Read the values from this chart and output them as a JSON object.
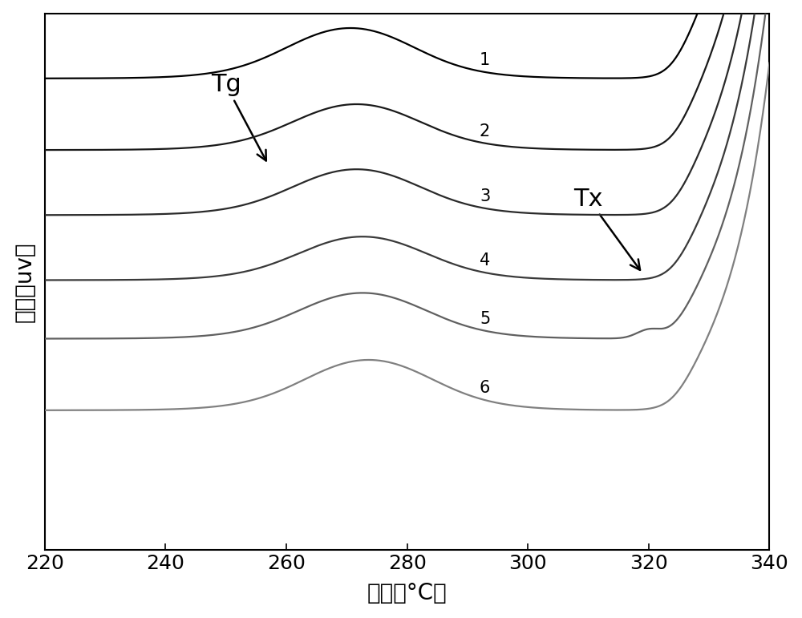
{
  "x_min": 220,
  "x_max": 340,
  "xlabel": "温度（°C）",
  "ylabel": "热量（uv）",
  "xlabel_fontsize": 20,
  "ylabel_fontsize": 20,
  "tick_fontsize": 18,
  "annotation_fontsize": 22,
  "label_fontsize": 15,
  "background_color": "#ffffff",
  "line_colors": [
    "#000000",
    "#1a1a1a",
    "#2a2a2a",
    "#3a3a3a",
    "#606060",
    "#808080"
  ],
  "num_curves": 6,
  "curve_labels": [
    "1",
    "2",
    "3",
    "4",
    "5",
    "6"
  ],
  "Tg_label": "Tg",
  "Tx_label": "Tx",
  "offsets": [
    0.9,
    0.68,
    0.48,
    0.28,
    0.1,
    -0.12
  ],
  "tg_centers": [
    261,
    262,
    262,
    263,
    263,
    264
  ],
  "tg_depths": [
    0.22,
    0.2,
    0.2,
    0.19,
    0.2,
    0.22
  ],
  "tg_widths": [
    5.5,
    5.5,
    5.5,
    5.5,
    5.5,
    5.5
  ],
  "tx_centers": [
    330,
    330,
    330,
    330,
    330,
    330
  ],
  "end_rises": [
    4.0,
    3.8,
    3.6,
    3.5,
    3.3,
    3.2
  ],
  "rise_steepness": [
    7,
    7,
    7,
    7,
    7,
    7
  ],
  "small_bump_x": [
    null,
    null,
    null,
    null,
    320,
    null
  ],
  "small_bump_h": [
    0,
    0,
    0,
    0,
    0.025,
    0
  ]
}
